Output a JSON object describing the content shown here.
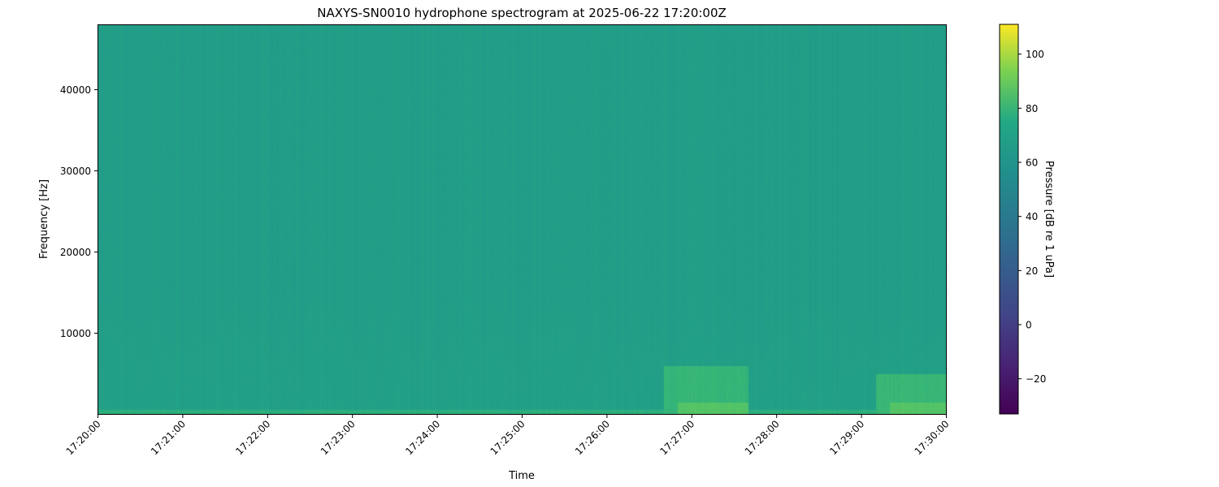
{
  "chart_data": {
    "type": "heatmap",
    "title": "NAXYS-SN0010 hydrophone spectrogram at 2025-06-22 17:20:00Z",
    "xlabel": "Time",
    "ylabel": "Frequency [Hz]",
    "x_ticks": [
      "17:20:00",
      "17:21:00",
      "17:22:00",
      "17:23:00",
      "17:24:00",
      "17:25:00",
      "17:26:00",
      "17:27:00",
      "17:28:00",
      "17:29:00",
      "17:30:00"
    ],
    "xlim": [
      "17:20:00",
      "17:30:00"
    ],
    "y_ticks": [
      10000,
      20000,
      30000,
      40000
    ],
    "ylim": [
      0,
      48000
    ],
    "colormap": "viridis",
    "colorbar": {
      "label": "Pressure [dB re 1 uPa]",
      "ticks": [
        -20,
        0,
        20,
        40,
        60,
        80,
        100
      ],
      "range": [
        -33,
        111
      ]
    },
    "background_level_db": 47,
    "features": [
      {
        "t_start": "17:20:00",
        "t_end": "17:30:00",
        "f_low": 0,
        "f_high": 600,
        "level_db": 58
      },
      {
        "t_start": "17:26:40",
        "t_end": "17:27:40",
        "f_low": 0,
        "f_high": 6000,
        "level_db": 62
      },
      {
        "t_start": "17:26:50",
        "t_end": "17:27:40",
        "f_low": 0,
        "f_high": 1500,
        "level_db": 72
      },
      {
        "t_start": "17:29:10",
        "t_end": "17:30:00",
        "f_low": 0,
        "f_high": 5000,
        "level_db": 63
      },
      {
        "t_start": "17:29:20",
        "t_end": "17:30:00",
        "f_low": 0,
        "f_high": 1500,
        "level_db": 72
      }
    ]
  }
}
